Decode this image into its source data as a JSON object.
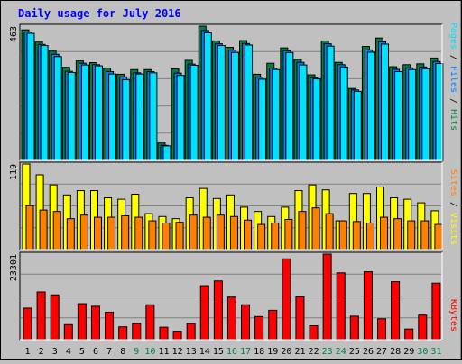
{
  "title": "Daily usage for July 2016",
  "colors": {
    "background": "#c0c0c0",
    "title": "#0000ff",
    "hits": "#008040",
    "files": "#0080ff",
    "pages": "#00e0ff",
    "visits": "#ffff00",
    "sites": "#ff8000",
    "kbytes": "#ff0000",
    "weekday_label": "#000000",
    "weekend_label": "#008040",
    "gridline": "#808080"
  },
  "chart_data": [
    {
      "type": "bar",
      "title": "Daily usage for July 2016",
      "x": [
        1,
        2,
        3,
        4,
        5,
        6,
        7,
        8,
        9,
        10,
        11,
        12,
        13,
        14,
        15,
        16,
        17,
        18,
        19,
        20,
        21,
        22,
        23,
        24,
        25,
        26,
        27,
        28,
        29,
        30,
        31
      ],
      "weekend_days": [
        9,
        10,
        16,
        17,
        23,
        24,
        30,
        31
      ],
      "ymax_label": "463",
      "ylim": [
        0,
        463
      ],
      "legend": [
        "Pages",
        "Files",
        "Hits"
      ],
      "series": [
        {
          "name": "Hits",
          "values": [
            450,
            408,
            377,
            321,
            343,
            337,
            318,
            297,
            313,
            313,
            60,
            316,
            345,
            463,
            412,
            390,
            413,
            297,
            335,
            388,
            348,
            295,
            412,
            338,
            248,
            393,
            422,
            323,
            330,
            333,
            353
          ]
        },
        {
          "name": "Files",
          "values": [
            443,
            400,
            366,
            307,
            335,
            330,
            306,
            288,
            302,
            306,
            52,
            301,
            332,
            448,
            402,
            380,
            403,
            287,
            318,
            378,
            338,
            285,
            402,
            330,
            243,
            381,
            409,
            314,
            319,
            322,
            341
          ]
        },
        {
          "name": "Pages",
          "values": [
            438,
            396,
            358,
            303,
            329,
            326,
            298,
            278,
            298,
            302,
            50,
            293,
            328,
            440,
            396,
            372,
            398,
            280,
            313,
            372,
            329,
            281,
            394,
            322,
            238,
            373,
            401,
            306,
            313,
            316,
            334
          ]
        }
      ]
    },
    {
      "type": "bar",
      "x": [
        1,
        2,
        3,
        4,
        5,
        6,
        7,
        8,
        9,
        10,
        11,
        12,
        13,
        14,
        15,
        16,
        17,
        18,
        19,
        20,
        21,
        22,
        23,
        24,
        25,
        26,
        27,
        28,
        29,
        30,
        31
      ],
      "ymax_label": "119",
      "ylim": [
        0,
        119
      ],
      "legend": [
        "Sites",
        "Visits"
      ],
      "series": [
        {
          "name": "Visits",
          "values": [
            119,
            104,
            90,
            76,
            82,
            82,
            72,
            70,
            77,
            50,
            46,
            43,
            72,
            85,
            71,
            76,
            59,
            53,
            46,
            59,
            82,
            90,
            83,
            40,
            78,
            78,
            87,
            72,
            70,
            65,
            54
          ]
        },
        {
          "name": "Sites",
          "values": [
            61,
            55,
            53,
            43,
            48,
            45,
            45,
            47,
            45,
            40,
            37,
            38,
            48,
            45,
            48,
            46,
            41,
            35,
            37,
            42,
            53,
            58,
            50,
            40,
            39,
            37,
            45,
            43,
            40,
            40,
            35
          ]
        }
      ]
    },
    {
      "type": "bar",
      "x": [
        1,
        2,
        3,
        4,
        5,
        6,
        7,
        8,
        9,
        10,
        11,
        12,
        13,
        14,
        15,
        16,
        17,
        18,
        19,
        20,
        21,
        22,
        23,
        24,
        25,
        26,
        27,
        28,
        29,
        30,
        31
      ],
      "ymax_label": "23301",
      "ylim": [
        0,
        23301
      ],
      "legend": [
        "KBytes"
      ],
      "series": [
        {
          "name": "KBytes",
          "values": [
            8600,
            13000,
            12200,
            4100,
            9800,
            9100,
            7500,
            3500,
            4400,
            9500,
            3400,
            2300,
            4400,
            14700,
            16000,
            11600,
            9500,
            6300,
            8000,
            22000,
            11700,
            3800,
            23301,
            18200,
            6400,
            18500,
            5700,
            15800,
            2900,
            6700,
            15400
          ]
        }
      ]
    }
  ]
}
